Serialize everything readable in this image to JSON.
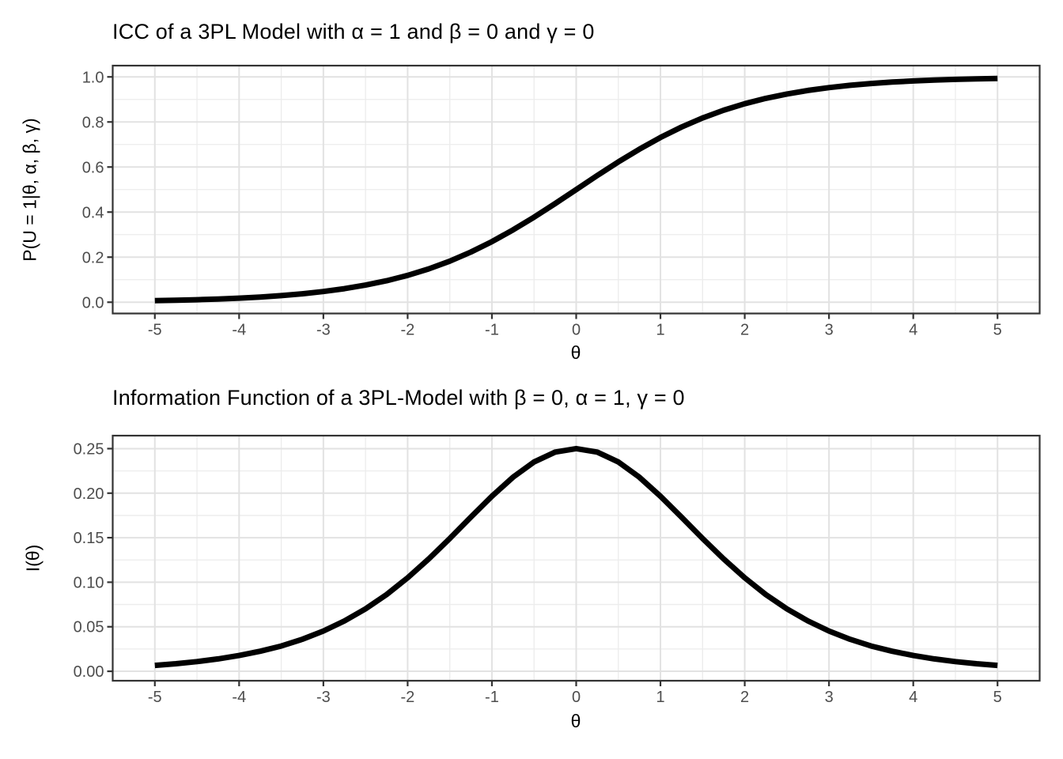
{
  "page": {
    "background": "#ffffff"
  },
  "style": {
    "line_color": "#000000",
    "line_width": 7,
    "panel_background": "#ffffff",
    "grid_major_color": "#e2e2e2",
    "grid_minor_color": "#ececec",
    "panel_border_color": "#333333",
    "tick_color": "#333333",
    "tick_label_color": "#4d4d4d",
    "title_color": "#000000"
  },
  "chart_data": [
    {
      "type": "line",
      "title": "ICC of a 3PL Model with α = 1 and β = 0 and γ = 0",
      "xlabel": "θ",
      "ylabel": "P(U = 1|θ, α, β, γ)",
      "params": {
        "alpha": 1,
        "beta": 0,
        "gamma": 0
      },
      "xlim": [
        -5,
        5
      ],
      "ylim": [
        0,
        1
      ],
      "grid": "major+minor",
      "legend": "none",
      "x_ticks": [
        -5,
        -4,
        -3,
        -2,
        -1,
        0,
        1,
        2,
        3,
        4,
        5
      ],
      "x_tick_labels": [
        "-5",
        "-4",
        "-3",
        "-2",
        "-1",
        "0",
        "1",
        "2",
        "3",
        "4",
        "5"
      ],
      "y_ticks": [
        0.0,
        0.2,
        0.4,
        0.6,
        0.8,
        1.0
      ],
      "y_tick_labels": [
        "0.0",
        "0.2",
        "0.4",
        "0.6",
        "0.8",
        "1.0"
      ],
      "x": [
        -5,
        -4.75,
        -4.5,
        -4.25,
        -4,
        -3.75,
        -3.5,
        -3.25,
        -3,
        -2.75,
        -2.5,
        -2.25,
        -2,
        -1.75,
        -1.5,
        -1.25,
        -1,
        -0.75,
        -0.5,
        -0.25,
        0,
        0.25,
        0.5,
        0.75,
        1,
        1.25,
        1.5,
        1.75,
        2,
        2.25,
        2.5,
        2.75,
        3,
        3.25,
        3.5,
        3.75,
        4,
        4.25,
        4.5,
        4.75,
        5
      ],
      "y": [
        0.0067,
        0.0086,
        0.011,
        0.0141,
        0.018,
        0.023,
        0.0293,
        0.0373,
        0.0474,
        0.0601,
        0.0759,
        0.0953,
        0.1192,
        0.148,
        0.1824,
        0.2227,
        0.2689,
        0.3208,
        0.3775,
        0.4378,
        0.5,
        0.5622,
        0.6225,
        0.6792,
        0.7311,
        0.7773,
        0.8176,
        0.852,
        0.8808,
        0.9047,
        0.9241,
        0.9399,
        0.9526,
        0.9627,
        0.9707,
        0.977,
        0.982,
        0.9859,
        0.989,
        0.9914,
        0.9933
      ]
    },
    {
      "type": "line",
      "title": "Information Function of a 3PL-Model with β = 0, α = 1, γ = 0",
      "xlabel": "θ",
      "ylabel": "I(θ)",
      "params": {
        "beta": 0,
        "alpha": 1,
        "gamma": 0
      },
      "xlim": [
        -5,
        5
      ],
      "ylim": [
        0,
        0.25
      ],
      "grid": "major+minor",
      "legend": "none",
      "x_ticks": [
        -5,
        -4,
        -3,
        -2,
        -1,
        0,
        1,
        2,
        3,
        4,
        5
      ],
      "x_tick_labels": [
        "-5",
        "-4",
        "-3",
        "-2",
        "-1",
        "0",
        "1",
        "2",
        "3",
        "4",
        "5"
      ],
      "y_ticks": [
        0.0,
        0.05,
        0.1,
        0.15,
        0.2,
        0.25
      ],
      "y_tick_labels": [
        "0.00",
        "0.05",
        "0.10",
        "0.15",
        "0.20",
        "0.25"
      ],
      "x": [
        -5,
        -4.75,
        -4.5,
        -4.25,
        -4,
        -3.75,
        -3.5,
        -3.25,
        -3,
        -2.75,
        -2.5,
        -2.25,
        -2,
        -1.75,
        -1.5,
        -1.25,
        -1,
        -0.75,
        -0.5,
        -0.25,
        0,
        0.25,
        0.5,
        0.75,
        1,
        1.25,
        1.5,
        1.75,
        2,
        2.25,
        2.5,
        2.75,
        3,
        3.25,
        3.5,
        3.75,
        4,
        4.25,
        4.5,
        4.75,
        5
      ],
      "y": [
        0.0066,
        0.0085,
        0.0109,
        0.0139,
        0.0177,
        0.0225,
        0.0284,
        0.0359,
        0.0452,
        0.0565,
        0.0701,
        0.0862,
        0.105,
        0.1261,
        0.1491,
        0.1731,
        0.1966,
        0.2179,
        0.235,
        0.2461,
        0.25,
        0.2461,
        0.235,
        0.2179,
        0.1966,
        0.1731,
        0.1491,
        0.1261,
        0.105,
        0.0862,
        0.0701,
        0.0565,
        0.0452,
        0.0359,
        0.0284,
        0.0225,
        0.0177,
        0.0139,
        0.0109,
        0.0085,
        0.0066
      ]
    }
  ]
}
